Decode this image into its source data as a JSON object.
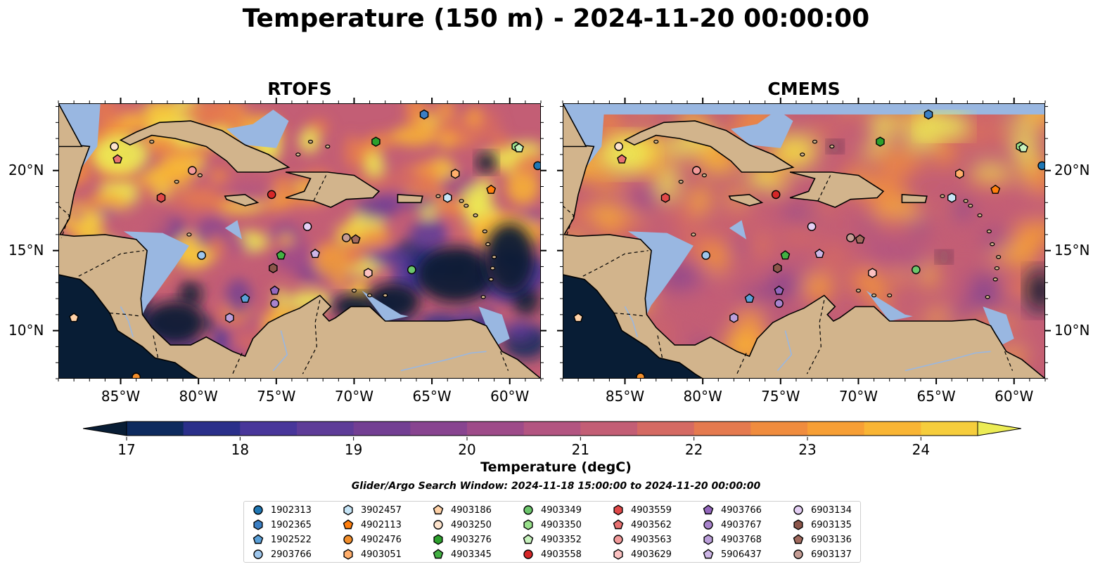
{
  "title": "Temperature (150 m) - 2024-11-20 00:00:00",
  "panels": [
    {
      "id": "rtofs",
      "title": "RTOFS"
    },
    {
      "id": "cmems",
      "title": "CMEMS"
    }
  ],
  "map_extent": {
    "lon": [
      -89,
      -58
    ],
    "lat": [
      7,
      24.2
    ]
  },
  "lon_ticks": [
    "85°W",
    "80°W",
    "75°W",
    "70°W",
    "65°W",
    "60°W"
  ],
  "lon_tick_values": [
    -85,
    -80,
    -75,
    -70,
    -65,
    -60
  ],
  "lat_ticks": [
    "10°N",
    "15°N",
    "20°N"
  ],
  "lat_tick_values": [
    10,
    15,
    20
  ],
  "colorbar": {
    "min": 17,
    "max": 24.5,
    "ticks": [
      "17",
      "18",
      "19",
      "20",
      "21",
      "22",
      "23",
      "24"
    ],
    "tick_values": [
      17,
      18,
      19,
      20,
      21,
      22,
      23,
      24
    ],
    "label": "Temperature (degC)",
    "colors": [
      "#081d35",
      "#0d2a5e",
      "#2a2f8a",
      "#48369a",
      "#5e3c98",
      "#733f93",
      "#884490",
      "#9e4b89",
      "#b35581",
      "#c35e75",
      "#d56a63",
      "#e57a4f",
      "#f08c3e",
      "#f79f35",
      "#f9b534",
      "#f6cd3c",
      "#ecec55"
    ]
  },
  "search_window": "Glider/Argo Search Window: 2024-11-18 15:00:00 to 2024-11-20 00:00:00",
  "colors": {
    "land": "#d2b48c",
    "water": "#99b7e1",
    "coast": "#000000"
  },
  "legend": [
    {
      "id": "1902313",
      "color": "#1f77b4",
      "marker": "circle"
    },
    {
      "id": "1902365",
      "color": "#3b7fc4",
      "marker": "hexagon"
    },
    {
      "id": "1902522",
      "color": "#5aa0d8",
      "marker": "pentagon"
    },
    {
      "id": "2903766",
      "color": "#9ec6ec",
      "marker": "circle"
    },
    {
      "id": "3902457",
      "color": "#c6e5f7",
      "marker": "hexagon"
    },
    {
      "id": "4902113",
      "color": "#ff7f0e",
      "marker": "pentagon"
    },
    {
      "id": "4902476",
      "color": "#f28e2b",
      "marker": "circle"
    },
    {
      "id": "4903051",
      "color": "#ffae6b",
      "marker": "hexagon"
    },
    {
      "id": "4903186",
      "color": "#ffd2a8",
      "marker": "pentagon"
    },
    {
      "id": "4903250",
      "color": "#fde3cc",
      "marker": "circle"
    },
    {
      "id": "4903276",
      "color": "#2ca02c",
      "marker": "hexagon"
    },
    {
      "id": "4903345",
      "color": "#43b043",
      "marker": "pentagon"
    },
    {
      "id": "4903349",
      "color": "#6cc66c",
      "marker": "circle"
    },
    {
      "id": "4903350",
      "color": "#98df8a",
      "marker": "hexagon"
    },
    {
      "id": "4903352",
      "color": "#c7f2bd",
      "marker": "pentagon"
    },
    {
      "id": "4903558",
      "color": "#d62728",
      "marker": "circle"
    },
    {
      "id": "4903559",
      "color": "#e04848",
      "marker": "hexagon"
    },
    {
      "id": "4903562",
      "color": "#e87171",
      "marker": "pentagon"
    },
    {
      "id": "4903563",
      "color": "#f29a9a",
      "marker": "circle"
    },
    {
      "id": "4903629",
      "color": "#fbc1c1",
      "marker": "hexagon"
    },
    {
      "id": "4903766",
      "color": "#9467bd",
      "marker": "pentagon"
    },
    {
      "id": "4903767",
      "color": "#a883cc",
      "marker": "circle"
    },
    {
      "id": "4903768",
      "color": "#bb9fda",
      "marker": "hexagon"
    },
    {
      "id": "5906437",
      "color": "#cdb6e6",
      "marker": "pentagon"
    },
    {
      "id": "6903134",
      "color": "#e4cff4",
      "marker": "circle"
    },
    {
      "id": "6903135",
      "color": "#8c564b",
      "marker": "hexagon"
    },
    {
      "id": "6903136",
      "color": "#a16a5e",
      "marker": "pentagon"
    },
    {
      "id": "6903137",
      "color": "#c49c94",
      "marker": "circle"
    }
  ],
  "observations": [
    {
      "id": "1902313",
      "lon": -58.2,
      "lat": 20.3
    },
    {
      "id": "1902365",
      "lon": -65.5,
      "lat": 23.5
    },
    {
      "id": "1902522",
      "lon": -77.0,
      "lat": 12.0
    },
    {
      "id": "2903766",
      "lon": -79.8,
      "lat": 14.7
    },
    {
      "id": "3902457",
      "lon": -64.0,
      "lat": 18.3
    },
    {
      "id": "4902113",
      "lon": -61.2,
      "lat": 18.8
    },
    {
      "id": "4902476",
      "lon": -84.0,
      "lat": 7.1
    },
    {
      "id": "4903051",
      "lon": -63.5,
      "lat": 19.8
    },
    {
      "id": "4903186",
      "lon": -88.0,
      "lat": 10.8
    },
    {
      "id": "4903250",
      "lon": -85.4,
      "lat": 21.5
    },
    {
      "id": "4903276",
      "lon": -68.6,
      "lat": 21.8
    },
    {
      "id": "4903345",
      "lon": -74.7,
      "lat": 14.7
    },
    {
      "id": "4903349",
      "lon": -66.3,
      "lat": 13.8
    },
    {
      "id": "4903350",
      "lon": -59.6,
      "lat": 21.5
    },
    {
      "id": "4903352",
      "lon": -59.4,
      "lat": 21.4
    },
    {
      "id": "4903558",
      "lon": -75.3,
      "lat": 18.5
    },
    {
      "id": "4903559",
      "lon": -82.4,
      "lat": 18.3
    },
    {
      "id": "4903562",
      "lon": -85.2,
      "lat": 20.7
    },
    {
      "id": "4903563",
      "lon": -80.4,
      "lat": 20.0
    },
    {
      "id": "4903629",
      "lon": -69.1,
      "lat": 13.6
    },
    {
      "id": "4903766",
      "lon": -75.1,
      "lat": 12.5
    },
    {
      "id": "4903767",
      "lon": -75.1,
      "lat": 11.7
    },
    {
      "id": "4903768",
      "lon": -78.0,
      "lat": 10.8
    },
    {
      "id": "5906437",
      "lon": -72.5,
      "lat": 14.8
    },
    {
      "id": "6903134",
      "lon": -73.0,
      "lat": 16.5
    },
    {
      "id": "6903135",
      "lon": -75.2,
      "lat": 13.9
    },
    {
      "id": "6903136",
      "lon": -69.9,
      "lat": 15.7
    },
    {
      "id": "6903137",
      "lon": -70.5,
      "lat": 15.8
    }
  ]
}
